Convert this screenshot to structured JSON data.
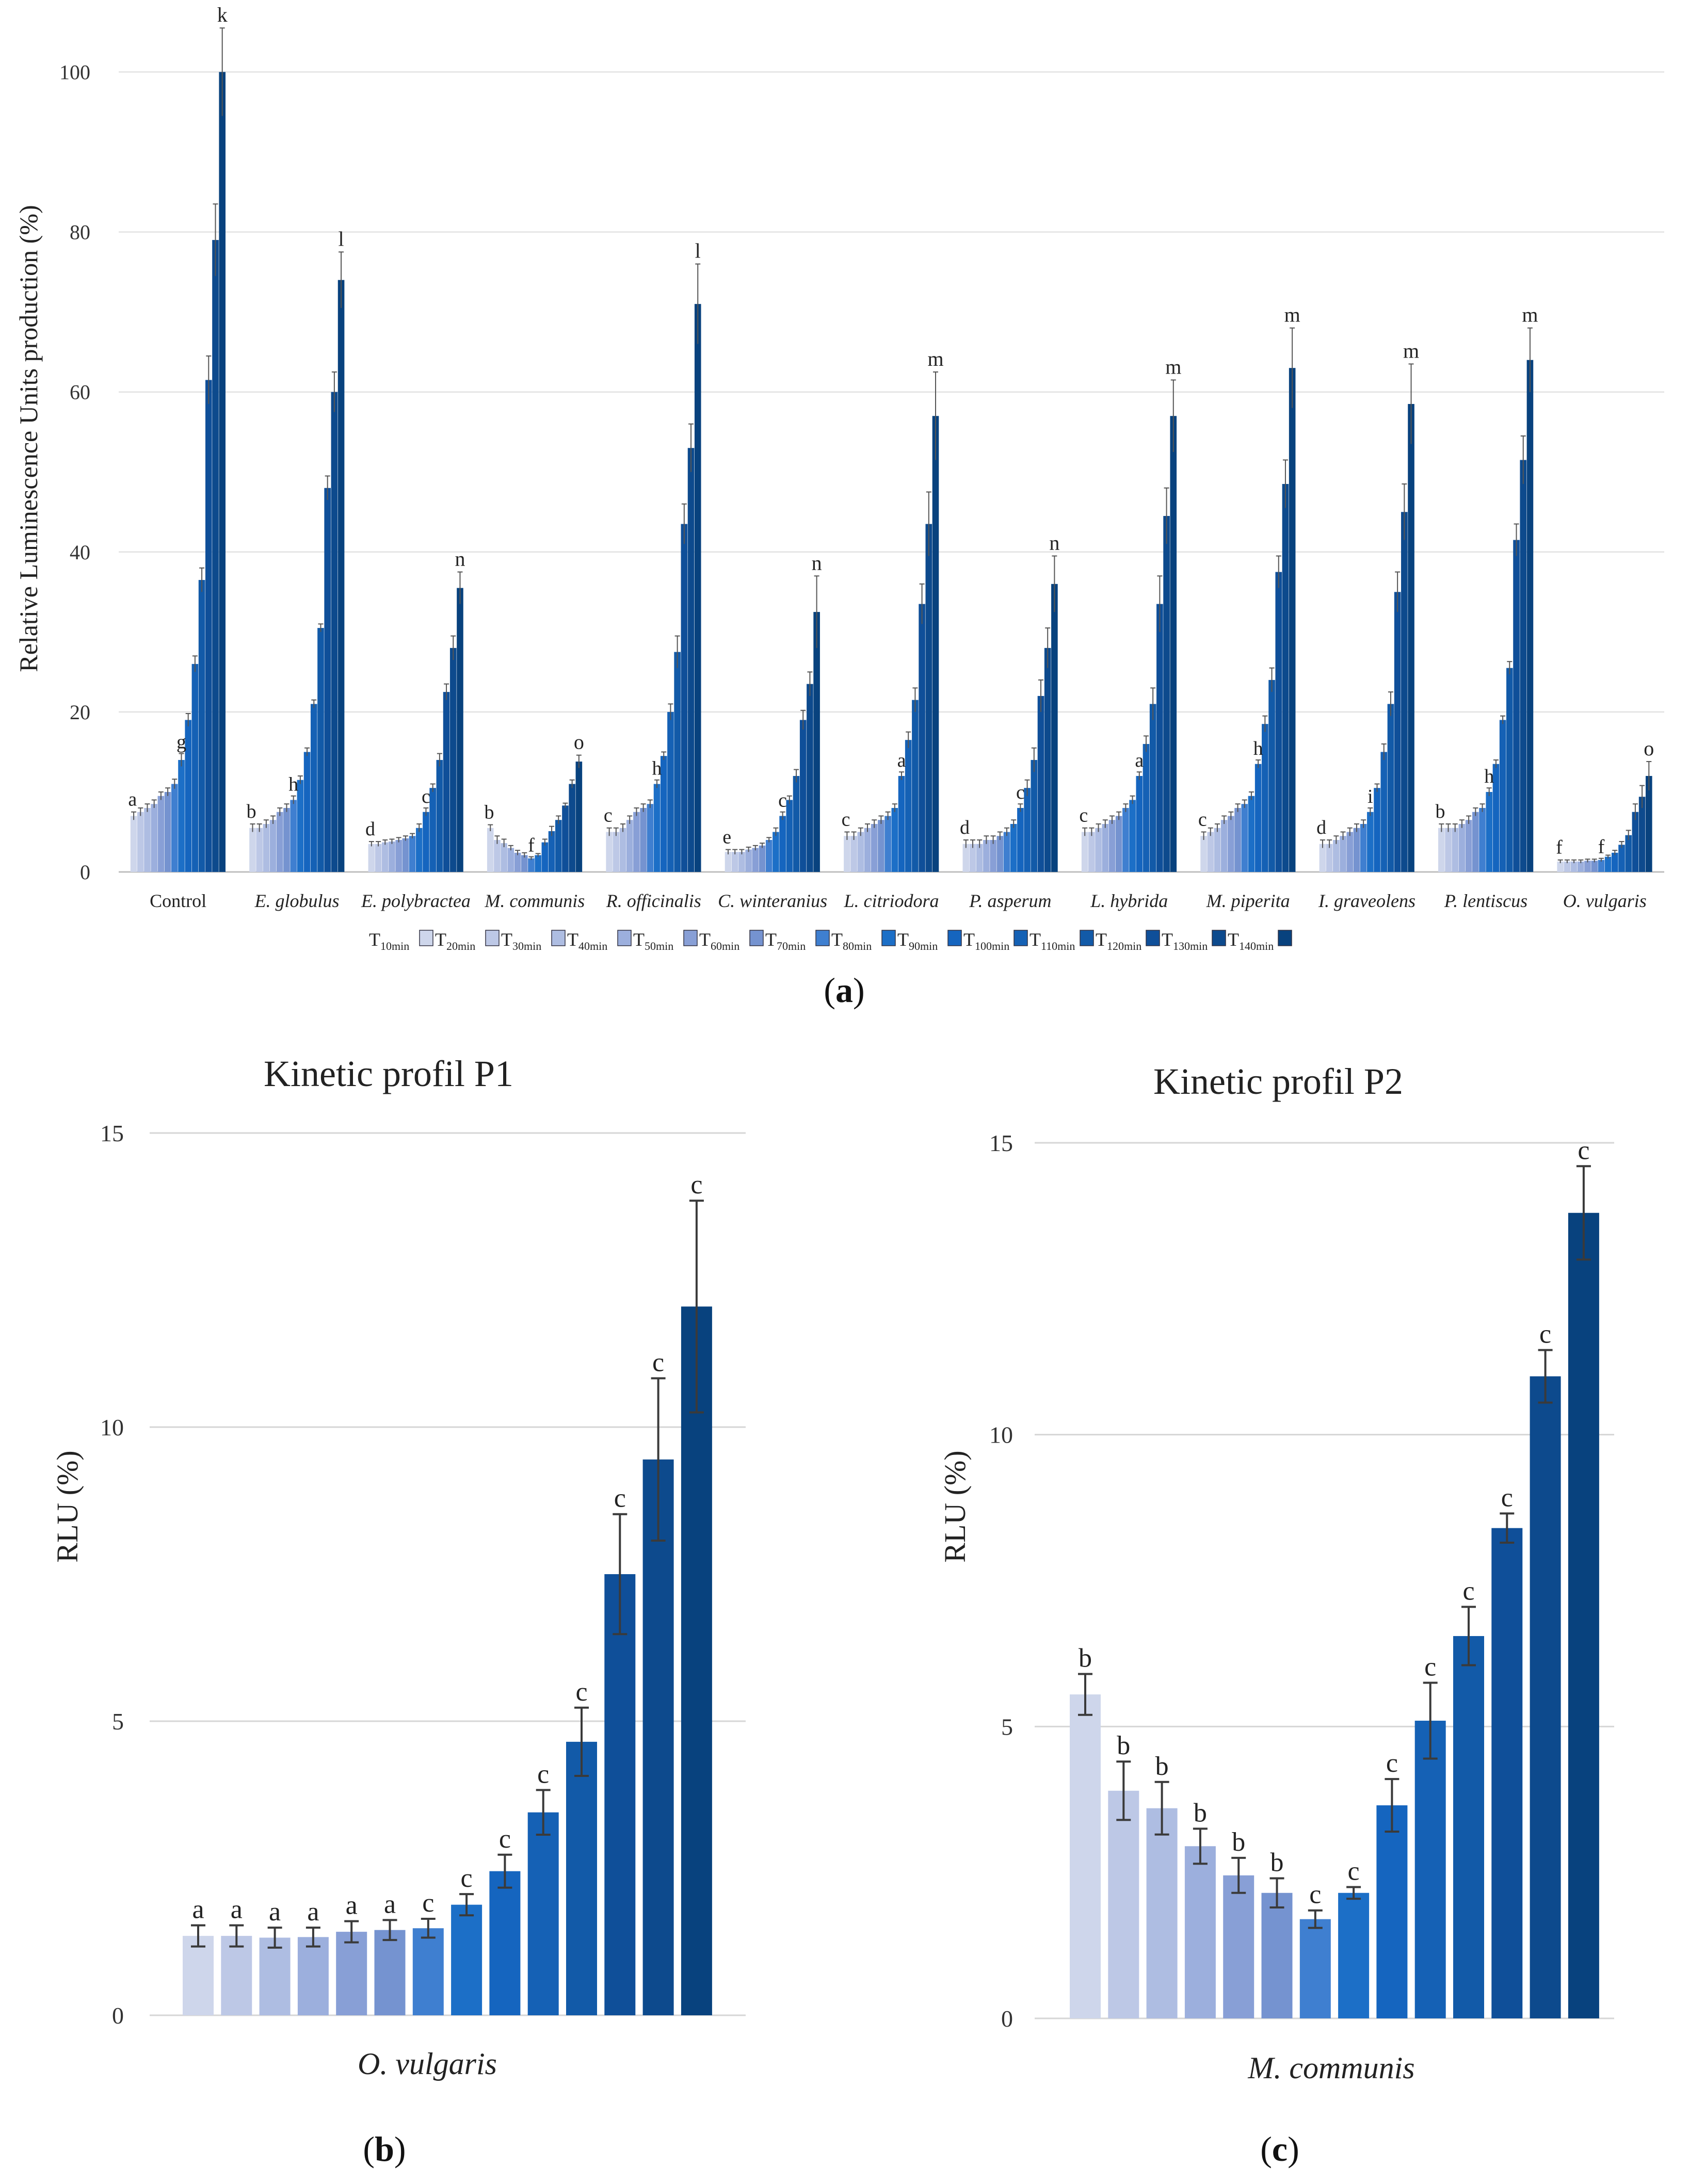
{
  "figure": {
    "panel_a_caption": "a",
    "panel_b_caption": "b",
    "panel_c_caption": "c",
    "legend_labels": [
      "T10min",
      "T20min",
      "T30min",
      "T40min",
      "T50min",
      "T60min",
      "T70min",
      "T80min",
      "T90min",
      "T100min",
      "T110min",
      "T120min",
      "T130min",
      "T140min"
    ],
    "legend_prefix": "T",
    "legend_subscripts": [
      "10min",
      "20min",
      "30min",
      "40min",
      "50min",
      "60min",
      "70min",
      "80min",
      "90min",
      "100min",
      "110min",
      "120min",
      "130min",
      "140min"
    ]
  },
  "colors": [
    "#ced6eb",
    "#bdc8e6",
    "#aebde2",
    "#9cafdd",
    "#889fd6",
    "#7593d0",
    "#3f7fd0",
    "#1c6fc7",
    "#1565bf",
    "#1561b5",
    "#125aa8",
    "#0f4f99",
    "#0d4a8d",
    "#08427e"
  ],
  "chart_data": [
    {
      "type": "bar",
      "panel": "a",
      "title": "",
      "xlabel": "",
      "ylabel": "Relative Luminescence Units production (%)",
      "ylim": [
        0,
        105
      ],
      "yticks": [
        "0",
        "20",
        "40",
        "60",
        "80",
        "100"
      ],
      "grid": true,
      "legend_position": "bottom",
      "categories": [
        "Control",
        "E. globulus",
        "E. polybractea",
        "M. communis",
        "R. officinalis",
        "C. winteranius",
        "L. citriodora",
        "P. asperum",
        "L. hybrida",
        "M. piperita",
        "I. graveolens",
        "P. lentiscus",
        "O. vulgaris"
      ],
      "series_names": [
        "T10min",
        "T20min",
        "T30min",
        "T40min",
        "T50min",
        "T60min",
        "T70min",
        "T80min",
        "T90min",
        "T100min",
        "T110min",
        "T120min",
        "T130min",
        "T140min"
      ],
      "values": [
        [
          7,
          7.5,
          8,
          8.5,
          9.5,
          10,
          11,
          14,
          19,
          26,
          36.5,
          61.5,
          79,
          100
        ],
        [
          5.5,
          5.5,
          6,
          6.5,
          7.5,
          8,
          9,
          11.5,
          15,
          21,
          30.5,
          48,
          60,
          74
        ],
        [
          3.5,
          3.5,
          3.7,
          3.8,
          4,
          4.2,
          4.5,
          5.5,
          7.5,
          10.5,
          14,
          22.5,
          28,
          35.5
        ],
        [
          5.5,
          4,
          3.6,
          3,
          2.4,
          2.1,
          1.7,
          2.1,
          3.7,
          5.1,
          6.5,
          8.3,
          11,
          13.8
        ],
        [
          5,
          5,
          5.5,
          6.5,
          7.5,
          8,
          8.5,
          11,
          14.5,
          20,
          27.5,
          43.5,
          53,
          71
        ],
        [
          2.5,
          2.5,
          2.5,
          2.8,
          3,
          3.3,
          4,
          5,
          7,
          9,
          12,
          19,
          23.5,
          32.5
        ],
        [
          4.5,
          4.5,
          5,
          5.5,
          6,
          6.5,
          7,
          8,
          12,
          16.5,
          21.5,
          33.5,
          43.5,
          57
        ],
        [
          3.5,
          3.5,
          3.5,
          4,
          4,
          4.5,
          5,
          6,
          8,
          10.5,
          14,
          22,
          28,
          36
        ],
        [
          5,
          5,
          5.5,
          6,
          6.5,
          7,
          8,
          9,
          12,
          16,
          21,
          33.5,
          44.5,
          57
        ],
        [
          4.5,
          5,
          5.5,
          6.5,
          7,
          8,
          8.5,
          9.5,
          13.5,
          18.5,
          24,
          37.5,
          48.5,
          63
        ],
        [
          3.5,
          3.5,
          4,
          4.5,
          5,
          5.5,
          6,
          7.5,
          10.5,
          15,
          21,
          35,
          45,
          58.5
        ],
        [
          5.5,
          5.5,
          5.5,
          6,
          6.5,
          7.5,
          8,
          10,
          13.5,
          19,
          25.5,
          41.5,
          51.5,
          64
        ],
        [
          1.3,
          1.3,
          1.3,
          1.3,
          1.4,
          1.4,
          1.5,
          1.9,
          2.4,
          3.4,
          4.6,
          7.5,
          9.4,
          12
        ]
      ],
      "errors": [
        [
          0.5,
          0.5,
          0.5,
          0.5,
          0.5,
          0.5,
          0.6,
          0.8,
          0.8,
          1,
          1.5,
          3,
          4.5,
          5.5
        ],
        [
          0.5,
          0.5,
          0.5,
          0.5,
          0.5,
          0.5,
          0.5,
          0.5,
          0.5,
          0.5,
          0.5,
          1.5,
          2.5,
          3.5
        ],
        [
          0.3,
          0.3,
          0.3,
          0.3,
          0.3,
          0.3,
          0.3,
          0.5,
          0.5,
          0.5,
          0.8,
          1,
          1.5,
          2
        ],
        [
          0.4,
          0.5,
          0.5,
          0.3,
          0.3,
          0.3,
          0.2,
          0.2,
          0.4,
          0.6,
          0.5,
          0.3,
          0.5,
          0.8
        ],
        [
          0.5,
          0.5,
          0.5,
          0.5,
          0.5,
          0.5,
          0.5,
          0.5,
          0.5,
          1,
          2,
          2.5,
          3,
          5
        ],
        [
          0.3,
          0.3,
          0.3,
          0.3,
          0.3,
          0.3,
          0.3,
          0.5,
          0.5,
          0.5,
          0.8,
          1.2,
          1.5,
          4.5
        ],
        [
          0.5,
          0.5,
          0.5,
          0.5,
          0.5,
          0.5,
          0.5,
          0.5,
          0.5,
          1,
          1.5,
          2.5,
          4,
          5.5
        ],
        [
          0.5,
          0.5,
          0.5,
          0.5,
          0.5,
          0.5,
          0.5,
          0.5,
          0.5,
          1,
          1.5,
          2,
          2.5,
          3.5
        ],
        [
          0.5,
          0.5,
          0.5,
          0.5,
          0.5,
          0.5,
          0.5,
          0.5,
          0.5,
          1,
          2,
          3.5,
          3.5,
          4.5
        ],
        [
          0.5,
          0.5,
          0.5,
          0.5,
          0.5,
          0.5,
          0.5,
          0.5,
          0.5,
          1,
          1.5,
          2,
          3,
          5
        ],
        [
          0.5,
          0.5,
          0.5,
          0.5,
          0.5,
          0.5,
          0.5,
          0.5,
          0.5,
          1,
          1.5,
          2.5,
          3.5,
          5
        ],
        [
          0.5,
          0.5,
          0.5,
          0.5,
          0.5,
          0.5,
          0.5,
          0.5,
          0.5,
          0.5,
          0.8,
          2,
          3,
          4
        ],
        [
          0.2,
          0.2,
          0.2,
          0.2,
          0.2,
          0.2,
          0.2,
          0.2,
          0.3,
          0.4,
          0.6,
          1,
          1.4,
          1.8
        ]
      ],
      "letters": [
        "k",
        "l",
        "n",
        "o",
        "l",
        "n",
        "m",
        "n",
        "m",
        "m",
        "m",
        "m",
        "o"
      ],
      "lower_letters": [
        "a",
        "b",
        "d",
        "b",
        "c",
        "e",
        "c",
        "d",
        "c",
        "c",
        "d",
        "b",
        "f"
      ],
      "mid_letters": [
        {
          "category": 0,
          "bar": 7,
          "label": "g"
        },
        {
          "category": 1,
          "bar": 6,
          "label": "h"
        },
        {
          "category": 2,
          "bar": 8,
          "label": "c"
        },
        {
          "category": 3,
          "bar": 6,
          "label": "f"
        },
        {
          "category": 4,
          "bar": 7,
          "label": "h"
        },
        {
          "category": 5,
          "bar": 8,
          "label": "c"
        },
        {
          "category": 6,
          "bar": 8,
          "label": "a"
        },
        {
          "category": 7,
          "bar": 8,
          "label": "c"
        },
        {
          "category": 8,
          "bar": 8,
          "label": "a"
        },
        {
          "category": 9,
          "bar": 8,
          "label": "h"
        },
        {
          "category": 10,
          "bar": 7,
          "label": "i"
        },
        {
          "category": 11,
          "bar": 7,
          "label": "h"
        },
        {
          "category": 12,
          "bar": 6,
          "label": "f"
        }
      ]
    },
    {
      "type": "bar",
      "panel": "b",
      "title": "Kinetic profil P1",
      "xlabel": "O. vulgaris",
      "ylabel": "RLU (%)",
      "ylim": [
        0,
        15
      ],
      "yticks": [
        "0",
        "5",
        "10",
        "15"
      ],
      "grid": true,
      "values": [
        1.35,
        1.35,
        1.32,
        1.33,
        1.42,
        1.45,
        1.48,
        1.88,
        2.45,
        3.45,
        4.65,
        7.5,
        9.45,
        12.05
      ],
      "errors": [
        0.18,
        0.18,
        0.17,
        0.16,
        0.18,
        0.17,
        0.16,
        0.18,
        0.28,
        0.38,
        0.58,
        1.02,
        1.38,
        1.8
      ],
      "letters": [
        "a",
        "a",
        "a",
        "a",
        "a",
        "a",
        "c",
        "c",
        "c",
        "c",
        "c",
        "c",
        "c",
        "c"
      ]
    },
    {
      "type": "bar",
      "panel": "c",
      "title": "Kinetic profil P2",
      "xlabel": "M. communis",
      "ylabel": "RLU (%)",
      "ylim": [
        0,
        15
      ],
      "yticks": [
        "0",
        "5",
        "10",
        "15"
      ],
      "grid": true,
      "values": [
        5.55,
        3.9,
        3.6,
        2.95,
        2.45,
        2.15,
        1.7,
        2.15,
        3.65,
        5.1,
        6.55,
        8.4,
        11.0,
        13.8
      ],
      "errors": [
        0.35,
        0.5,
        0.45,
        0.3,
        0.3,
        0.25,
        0.15,
        0.1,
        0.45,
        0.65,
        0.5,
        0.25,
        0.45,
        0.8
      ],
      "letters": [
        "b",
        "b",
        "b",
        "b",
        "b",
        "b",
        "c",
        "c",
        "c",
        "c",
        "c",
        "c",
        "c",
        "c"
      ]
    }
  ]
}
